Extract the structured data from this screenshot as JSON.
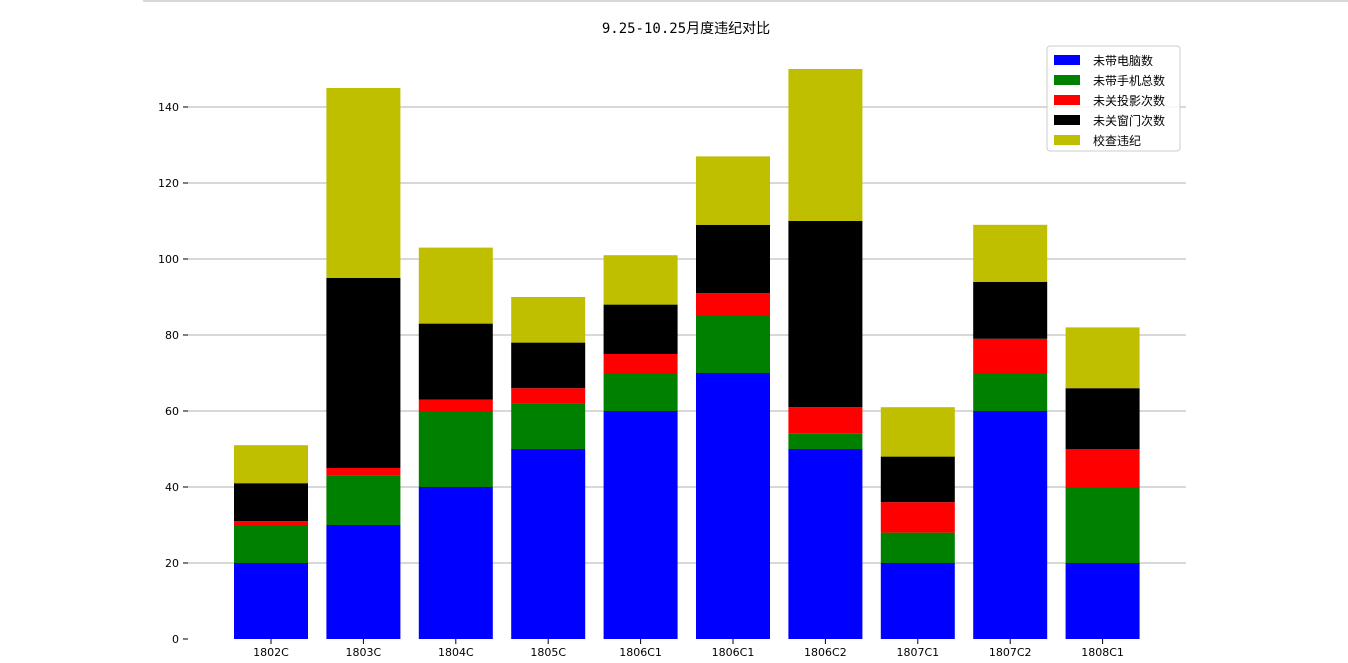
{
  "chart_data": {
    "type": "bar",
    "stacked": true,
    "title": "9.25-10.25月度违纪对比",
    "xlabel": "",
    "ylabel": "",
    "ylim": [
      0,
      150
    ],
    "yticks": [
      0,
      20,
      40,
      60,
      80,
      100,
      120,
      140
    ],
    "grid": "y",
    "legend_position": "top-right",
    "categories": [
      "1802C",
      "1803C",
      "1804C",
      "1805C",
      "1806C1",
      "1806C1",
      "1806C2",
      "1807C1",
      "1807C2",
      "1808C1"
    ],
    "series": [
      {
        "name": "未带电脑数",
        "color": "#0000ff",
        "values": [
          20,
          30,
          40,
          50,
          60,
          70,
          50,
          20,
          60,
          20
        ]
      },
      {
        "name": "未带手机总数",
        "color": "#008000",
        "values": [
          10,
          13,
          20,
          12,
          10,
          15,
          4,
          8,
          10,
          20
        ]
      },
      {
        "name": "未关投影次数",
        "color": "#ff0000",
        "values": [
          1,
          2,
          3,
          4,
          5,
          6,
          7,
          8,
          9,
          10
        ]
      },
      {
        "name": "未关窗门次数",
        "color": "#000000",
        "values": [
          10,
          50,
          20,
          12,
          13,
          18,
          49,
          12,
          15,
          16
        ]
      },
      {
        "name": "校查违纪",
        "color": "#bfbf00",
        "values": [
          10,
          50,
          20,
          12,
          13,
          18,
          40,
          13,
          15,
          16
        ]
      }
    ]
  }
}
